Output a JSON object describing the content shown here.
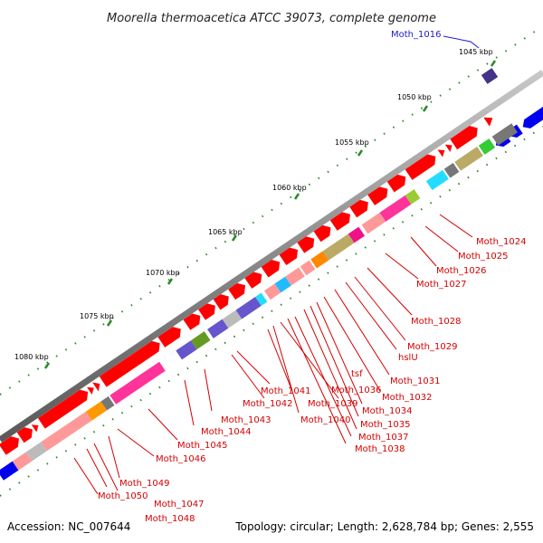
{
  "title": "Moorella thermoacetica ATCC 39073, complete genome",
  "footer": {
    "accession": "Accession: NC_007644",
    "topology": "Topology: circular; Length: 2,628,784 bp; Genes: 2,555"
  },
  "ticks": [
    "1045 kbp",
    "1050 kbp",
    "1055 kbp",
    "1060 kbp",
    "1065 kbp",
    "1070 kbp",
    "1075 kbp",
    "1080 kbp"
  ],
  "highlight_label": "Moth_1016",
  "gene_labels": [
    "Moth_1024",
    "Moth_1025",
    "Moth_1026",
    "Moth_1027",
    "Moth_1028",
    "Moth_1029",
    "hslU",
    "Moth_1031",
    "tsf",
    "Moth_1032",
    "Moth_1036",
    "Moth_1034",
    "Moth_1041",
    "Moth_1039",
    "Moth_1035",
    "Moth_1042",
    "Moth_1040",
    "Moth_1037",
    "Moth_1038",
    "Moth_1043",
    "Moth_1044",
    "Moth_1045",
    "Moth_1046",
    "Moth_1049",
    "Moth_1050",
    "Moth_1047",
    "Moth_1048"
  ],
  "colors": {
    "forward_strand": "#ff0000",
    "backbone": "#888888",
    "tick": "#2a8a2a",
    "label_red": "#d40000",
    "label_blue": "#1a1acc",
    "gene_blue": "#0000ee"
  }
}
